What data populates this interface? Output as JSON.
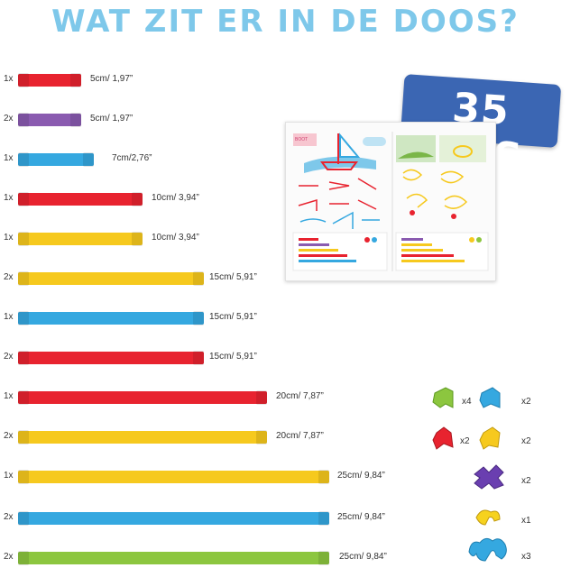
{
  "title": "WAT ZIT ER IN DE DOOS?",
  "badge": "35 PCS",
  "tubes": [
    {
      "qty": "1x",
      "length": "5cm/ 1,97”",
      "color": "#e8232f"
    },
    {
      "qty": "2x",
      "length": "5cm/ 1,97”",
      "color": "#8a5bb0"
    },
    {
      "qty": "1x",
      "length": "7cm/2,76”",
      "color": "#35a8e0"
    },
    {
      "qty": "1x",
      "length": "10cm/ 3,94”",
      "color": "#e8232f"
    },
    {
      "qty": "1x",
      "length": "10cm/ 3,94”",
      "color": "#f6c91e"
    },
    {
      "qty": "2x",
      "length": "15cm/ 5,91”",
      "color": "#f6c91e"
    },
    {
      "qty": "1x",
      "length": "15cm/ 5,91”",
      "color": "#35a8e0"
    },
    {
      "qty": "2x",
      "length": "15cm/ 5,91”",
      "color": "#e8232f"
    },
    {
      "qty": "1x",
      "length": "20cm/ 7,87”",
      "color": "#e8232f"
    },
    {
      "qty": "2x",
      "length": "20cm/ 7,87”",
      "color": "#f6c91e"
    },
    {
      "qty": "1x",
      "length": "25cm/ 9,84”",
      "color": "#f6c91e"
    },
    {
      "qty": "2x",
      "length": "25cm/ 9,84”",
      "color": "#35a8e0"
    },
    {
      "qty": "2x",
      "length": "25cm/ 9,84”",
      "color": "#8cc63f"
    }
  ],
  "connectors": [
    {
      "name": "green-connector",
      "qty": "x4",
      "color": "#8cc63f"
    },
    {
      "name": "blue-connector",
      "qty": "x2",
      "color": "#35a8e0"
    },
    {
      "name": "red-connector",
      "qty": "x2",
      "color": "#e8232f"
    },
    {
      "name": "yellow-connector",
      "qty": "x2",
      "color": "#f6c91e"
    },
    {
      "name": "purple-connector",
      "qty": "x2",
      "color": "#6a3fb0"
    },
    {
      "name": "yellow-curved-connector",
      "qty": "x1",
      "color": "#f6d21e"
    },
    {
      "name": "blue-curved-connector",
      "qty": "x3",
      "color": "#35a8e0"
    }
  ]
}
